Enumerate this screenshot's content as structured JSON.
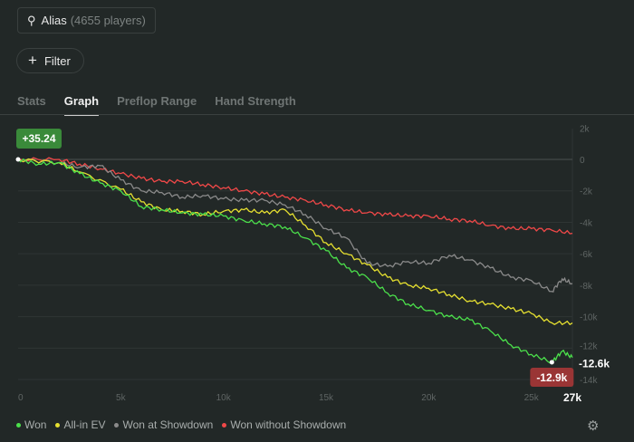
{
  "player": {
    "name": "Alias",
    "count": "(4655 players)"
  },
  "filter": {
    "label": "Filter"
  },
  "tabs": [
    {
      "label": "Stats"
    },
    {
      "label": "Graph"
    },
    {
      "label": "Preflop Range"
    },
    {
      "label": "Hand Strength"
    }
  ],
  "settings_icon": "gear-icon",
  "chart_data": {
    "type": "line",
    "xlim": [
      0,
      27000
    ],
    "ylim": [
      -14500,
      2000
    ],
    "x_ticks": [
      "0",
      "5k",
      "10k",
      "15k",
      "20k",
      "25k"
    ],
    "x_tick_values": [
      0,
      5000,
      10000,
      15000,
      20000,
      25000
    ],
    "x_end_label": "27k",
    "y_ticks": [
      "2k",
      "0",
      "-2k",
      "-4k",
      "-6k",
      "-8k",
      "-10k",
      "-12k",
      "-14k"
    ],
    "y_tick_values": [
      2000,
      0,
      -2000,
      -4000,
      -6000,
      -8000,
      -10000,
      -12000,
      -14000
    ],
    "start_label": "+35.24",
    "end_label": "-12.6k",
    "min_label": "-12.9k",
    "min_point": [
      26000,
      -12900
    ],
    "series": [
      {
        "name": "Won",
        "color": "#4be04b",
        "x": [
          0,
          1,
          2,
          3,
          4,
          5,
          6,
          7,
          8,
          9,
          10,
          11,
          12,
          13,
          14,
          15,
          16,
          17,
          18,
          19,
          20,
          21,
          22,
          23,
          24,
          25,
          26,
          26.5,
          27
        ],
        "y": [
          0,
          -0.3,
          -0.2,
          -0.9,
          -1.5,
          -2,
          -3,
          -3.2,
          -3.4,
          -3.5,
          -3.6,
          -3.9,
          -4.1,
          -4.3,
          -5,
          -5.8,
          -6.9,
          -7.5,
          -8.5,
          -9.2,
          -9.6,
          -10,
          -10.2,
          -10.9,
          -11.8,
          -12.4,
          -12.9,
          -12.2,
          -12.6
        ]
      },
      {
        "name": "All-in EV",
        "color": "#e6e030",
        "x": [
          0,
          2,
          3,
          5,
          6,
          7,
          8,
          9,
          10,
          11,
          12,
          13,
          14,
          15,
          16,
          17,
          18,
          19,
          20,
          21,
          22,
          23,
          24,
          25,
          26,
          27
        ],
        "y": [
          0,
          -0.2,
          -0.8,
          -1.9,
          -2.7,
          -3.2,
          -3.3,
          -3.5,
          -3.3,
          -3.2,
          -3.4,
          -3.2,
          -4.2,
          -5.3,
          -6,
          -6.7,
          -7.5,
          -8,
          -8.2,
          -8.6,
          -9,
          -9.2,
          -9.5,
          -9.8,
          -10.4,
          -10.4
        ]
      },
      {
        "name": "Won at Showdown",
        "color": "#8a8a8a",
        "x": [
          0,
          2,
          3,
          4,
          5,
          6,
          7,
          8,
          9,
          10,
          11,
          12,
          13,
          14,
          15,
          16,
          17,
          18,
          19,
          20,
          21,
          22,
          23,
          24,
          25,
          26,
          26.5,
          27
        ],
        "y": [
          0,
          -0.2,
          -0.5,
          -0.4,
          -1.3,
          -2,
          -2.1,
          -2.4,
          -2.3,
          -2.5,
          -2.6,
          -2.6,
          -2.9,
          -3.5,
          -4.4,
          -5,
          -6.6,
          -6.8,
          -6.5,
          -6.6,
          -6.1,
          -6.4,
          -6.9,
          -7.5,
          -7.7,
          -8.4,
          -7.6,
          -7.9
        ]
      },
      {
        "name": "Won without Showdown",
        "color": "#f04848",
        "x": [
          0,
          2,
          3,
          4,
          5,
          6,
          7,
          8,
          9,
          10,
          11,
          12,
          13,
          14,
          15,
          16,
          17,
          18,
          19,
          20,
          21,
          22,
          23,
          24,
          25,
          26,
          27
        ],
        "y": [
          0,
          0,
          -0.3,
          -0.6,
          -0.9,
          -1.2,
          -1.4,
          -1.4,
          -1.6,
          -1.8,
          -2,
          -2.2,
          -2.4,
          -2.6,
          -2.9,
          -3.2,
          -3.4,
          -3.5,
          -3.6,
          -3.6,
          -3.8,
          -3.9,
          -4.2,
          -4.4,
          -4.4,
          -4.5,
          -4.7
        ]
      }
    ],
    "legend_position": "bottom-left"
  }
}
